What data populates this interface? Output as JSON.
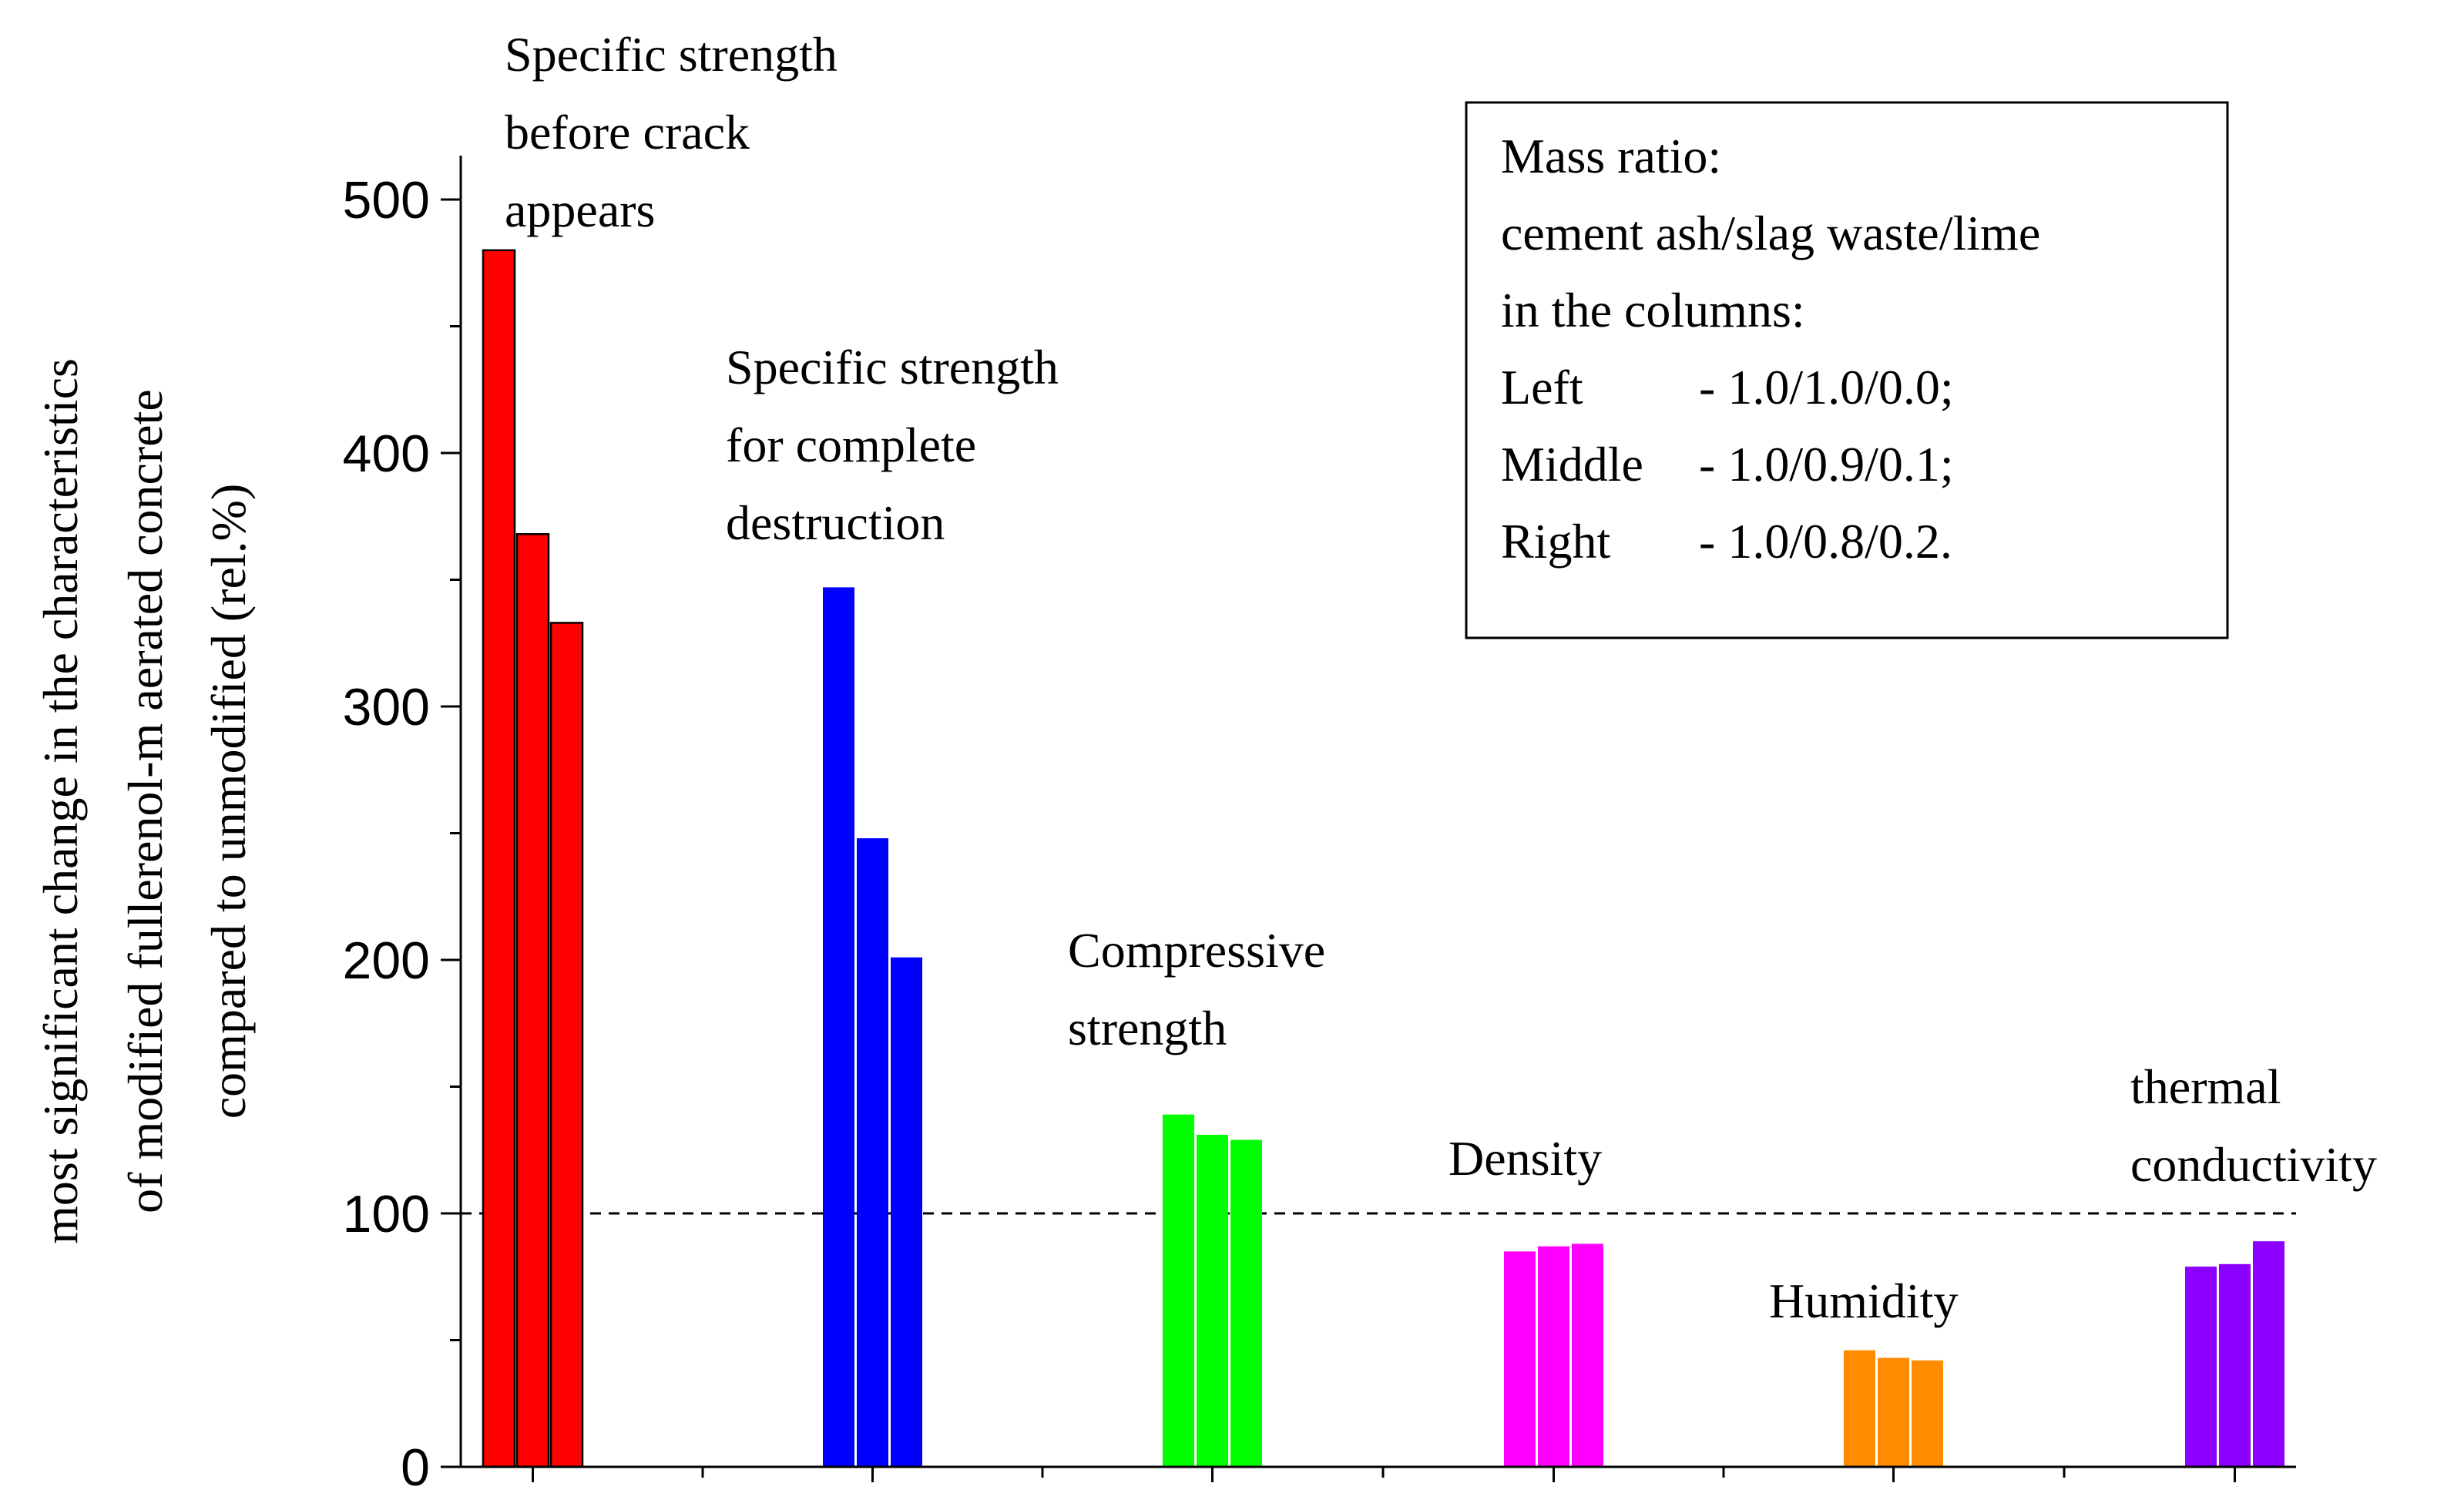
{
  "chart_data": {
    "type": "bar",
    "title": "",
    "xlabel": "",
    "ylabel_lines": [
      "most significant change in the characteristics",
      "of modified fullerenol-m aerated concrete",
      "compared to unmodified (rel.%)"
    ],
    "ylim": [
      0,
      520
    ],
    "yticks": [
      "0",
      "100",
      "200",
      "300",
      "400",
      "500"
    ],
    "reference_line": {
      "value": 100,
      "style": "dashed"
    },
    "series_names": [
      "Left",
      "Middle",
      "Right"
    ],
    "groups": [
      {
        "label_lines": [
          "Specific strength",
          "before crack",
          "appears"
        ],
        "values": [
          480,
          368,
          333
        ],
        "color": "#ff0000"
      },
      {
        "label_lines": [
          "Specific strength",
          "for complete",
          "destruction"
        ],
        "values": [
          347,
          248,
          201
        ],
        "color": "#0000ff"
      },
      {
        "label_lines": [
          "Compressive",
          "strength"
        ],
        "values": [
          139,
          131,
          129
        ],
        "color": "#00ff00"
      },
      {
        "label_lines": [
          "Density"
        ],
        "values": [
          85,
          87,
          88
        ],
        "color": "#ff00ff"
      },
      {
        "label_lines": [
          "Humidity"
        ],
        "values": [
          46,
          43,
          42
        ],
        "color": "#ff8c00"
      },
      {
        "label_lines": [
          "thermal",
          "conductivity"
        ],
        "values": [
          79,
          80,
          89
        ],
        "color": "#8b00ff"
      }
    ],
    "legend": {
      "placement": "top-right",
      "title_lines": [
        "Mass ratio:",
        "cement ash/slag waste/lime",
        "in the columns:"
      ],
      "entries": [
        {
          "name": "Left",
          "value": "- 1.0/1.0/0.0;"
        },
        {
          "name": "Middle",
          "value": "- 1.0/0.9/0.1;"
        },
        {
          "name": "Right",
          "value": "- 1.0/0.8/0.2."
        }
      ]
    }
  }
}
